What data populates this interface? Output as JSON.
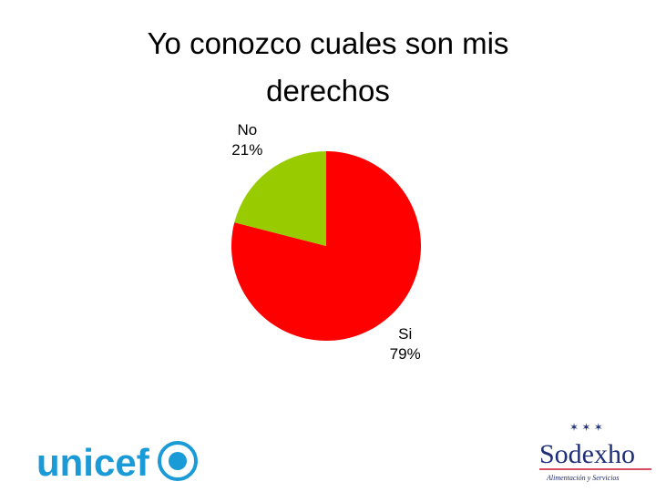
{
  "chart_data": {
    "type": "pie",
    "title": "Yo conozco cuales son mis derechos",
    "categories": [
      "Si",
      "No"
    ],
    "values": [
      79,
      21
    ],
    "value_labels": [
      "79%",
      "21%"
    ],
    "colors": [
      "#ff0000",
      "#99cc00"
    ]
  },
  "logos": {
    "left": "unicef",
    "right": "Sodexho",
    "right_tagline": "Alimentación y Servicios"
  }
}
